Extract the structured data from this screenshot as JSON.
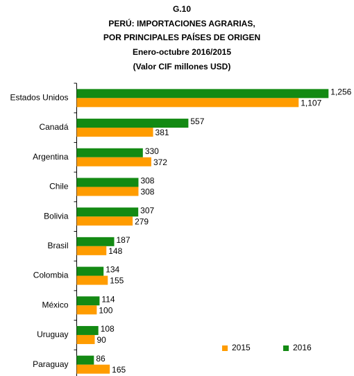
{
  "chart_data": {
    "type": "hbar",
    "title": [
      "G.10",
      "PERÚ: IMPORTACIONES AGRARIAS,",
      "POR PRINCIPALES PAÍSES DE ORIGEN",
      "Enero-octubre 2016/2015",
      "(Valor CIF millones USD)"
    ],
    "categories": [
      "Estados Unidos",
      "Canadá",
      "Argentina",
      "Chile",
      "Bolivia",
      "Brasil",
      "Colombia",
      "México",
      "Uruguay",
      "Paraguay"
    ],
    "series": [
      {
        "name": "2015",
        "color": "#ff9c00",
        "values": [
          1107,
          381,
          372,
          308,
          279,
          148,
          155,
          100,
          90,
          165
        ],
        "value_labels": [
          "1,107",
          "381",
          "372",
          "308",
          "279",
          "148",
          "155",
          "100",
          "90",
          "165"
        ]
      },
      {
        "name": "2016",
        "color": "#138a13",
        "values": [
          1256,
          557,
          330,
          308,
          307,
          187,
          134,
          114,
          108,
          86
        ],
        "value_labels": [
          "1,256",
          "557",
          "330",
          "308",
          "307",
          "187",
          "134",
          "114",
          "108",
          "86"
        ]
      }
    ],
    "xlim": [
      0,
      1300
    ],
    "legend": "bottom-right"
  }
}
